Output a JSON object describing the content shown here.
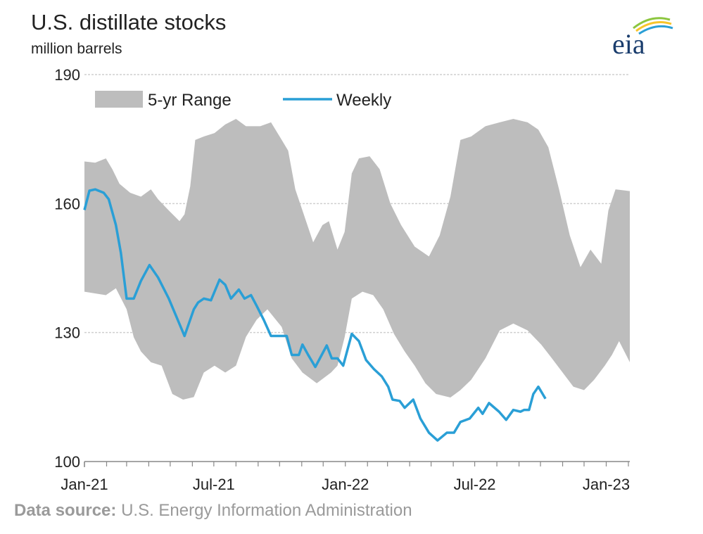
{
  "title": "U.S. distillate stocks",
  "subtitle": "million barrels",
  "logo_text": "eia",
  "source_label": "Data source:",
  "source_text": "U.S. Energy Information Administration",
  "colors": {
    "weekly": "#2a9fd6",
    "range": "#bdbdbd",
    "grid": "#d0d0d0"
  },
  "chart_data": {
    "type": "line",
    "title": "U.S. distillate stocks",
    "ylabel": "million barrels",
    "ylim": [
      100,
      190
    ],
    "yticks": [
      100,
      130,
      160,
      190
    ],
    "xlim": [
      "2021-01-01",
      "2023-02-03"
    ],
    "xticks": [
      {
        "date": "2021-01-01",
        "label": "Jan-21"
      },
      {
        "date": "2021-07-01",
        "label": "Jul-21"
      },
      {
        "date": "2022-01-01",
        "label": "Jan-22"
      },
      {
        "date": "2022-07-01",
        "label": "Jul-22"
      },
      {
        "date": "2023-01-01",
        "label": "Jan-23"
      }
    ],
    "grid": "horizontal",
    "legend": {
      "position": "top-left",
      "range_label": "5-yr Range",
      "weekly_label": "Weekly"
    },
    "range_upper": [
      [
        "2021-01-01",
        169.8
      ],
      [
        "2021-01-16",
        169.5
      ],
      [
        "2021-01-31",
        170.5
      ],
      [
        "2021-02-09",
        168
      ],
      [
        "2021-02-19",
        164.6
      ],
      [
        "2021-03-06",
        162.5
      ],
      [
        "2021-03-21",
        161.6
      ],
      [
        "2021-04-04",
        163.3
      ],
      [
        "2021-04-14",
        161
      ],
      [
        "2021-04-29",
        158.4
      ],
      [
        "2021-05-14",
        155.9
      ],
      [
        "2021-05-21",
        157.5
      ],
      [
        "2021-05-29",
        164
      ],
      [
        "2021-06-05",
        174.8
      ],
      [
        "2021-06-17",
        175.6
      ],
      [
        "2021-07-02",
        176.4
      ],
      [
        "2021-07-17",
        178.4
      ],
      [
        "2021-08-01",
        179.7
      ],
      [
        "2021-08-15",
        178
      ],
      [
        "2021-09-04",
        178
      ],
      [
        "2021-09-19",
        178.9
      ],
      [
        "2021-10-04",
        174.8
      ],
      [
        "2021-10-13",
        172.3
      ],
      [
        "2021-10-23",
        163.3
      ],
      [
        "2021-11-02",
        158.4
      ],
      [
        "2021-11-17",
        151
      ],
      [
        "2021-11-30",
        155
      ],
      [
        "2021-12-09",
        155.9
      ],
      [
        "2021-12-21",
        149.3
      ],
      [
        "2021-12-31",
        153.4
      ],
      [
        "2022-01-10",
        167
      ],
      [
        "2022-01-20",
        170.5
      ],
      [
        "2022-02-04",
        171
      ],
      [
        "2022-02-18",
        168
      ],
      [
        "2022-03-05",
        160
      ],
      [
        "2022-03-20",
        155
      ],
      [
        "2022-04-08",
        150
      ],
      [
        "2022-04-28",
        147.7
      ],
      [
        "2022-05-13",
        152.6
      ],
      [
        "2022-05-28",
        161.6
      ],
      [
        "2022-06-11",
        174.8
      ],
      [
        "2022-06-26",
        175.6
      ],
      [
        "2022-07-16",
        178
      ],
      [
        "2022-08-05",
        178.9
      ],
      [
        "2022-08-24",
        179.7
      ],
      [
        "2022-09-13",
        178.9
      ],
      [
        "2022-09-28",
        177.2
      ],
      [
        "2022-10-12",
        173.1
      ],
      [
        "2022-10-27",
        163.3
      ],
      [
        "2022-11-11",
        152.6
      ],
      [
        "2022-11-26",
        145.2
      ],
      [
        "2022-12-10",
        149.3
      ],
      [
        "2022-12-25",
        146
      ],
      [
        "2023-01-04",
        158.4
      ],
      [
        "2023-01-14",
        163.3
      ],
      [
        "2023-02-03",
        162.9
      ]
    ],
    "range_lower": [
      [
        "2021-01-01",
        139.5
      ],
      [
        "2021-01-31",
        138.7
      ],
      [
        "2021-02-14",
        140.3
      ],
      [
        "2021-03-01",
        135.4
      ],
      [
        "2021-03-11",
        128.9
      ],
      [
        "2021-03-21",
        125.6
      ],
      [
        "2021-04-04",
        123.1
      ],
      [
        "2021-04-19",
        122.3
      ],
      [
        "2021-05-04",
        115.7
      ],
      [
        "2021-05-19",
        114.4
      ],
      [
        "2021-06-03",
        115
      ],
      [
        "2021-06-17",
        120.7
      ],
      [
        "2021-07-02",
        122.3
      ],
      [
        "2021-07-17",
        120.7
      ],
      [
        "2021-08-01",
        122.3
      ],
      [
        "2021-08-15",
        129
      ],
      [
        "2021-08-30",
        133
      ],
      [
        "2021-09-14",
        135.4
      ],
      [
        "2021-10-04",
        131.3
      ],
      [
        "2021-10-18",
        124
      ],
      [
        "2021-11-02",
        120.7
      ],
      [
        "2021-11-22",
        118.2
      ],
      [
        "2021-12-12",
        120.7
      ],
      [
        "2021-12-21",
        122.3
      ],
      [
        "2021-12-31",
        128.9
      ],
      [
        "2022-01-10",
        137.9
      ],
      [
        "2022-01-25",
        139.5
      ],
      [
        "2022-02-09",
        138.7
      ],
      [
        "2022-02-23",
        135.4
      ],
      [
        "2022-03-10",
        129.7
      ],
      [
        "2022-03-25",
        125.6
      ],
      [
        "2022-04-08",
        122.3
      ],
      [
        "2022-04-23",
        118.2
      ],
      [
        "2022-05-08",
        115.7
      ],
      [
        "2022-05-28",
        114.9
      ],
      [
        "2022-06-11",
        116.6
      ],
      [
        "2022-06-26",
        119
      ],
      [
        "2022-07-16",
        124
      ],
      [
        "2022-08-05",
        130.5
      ],
      [
        "2022-08-24",
        132.1
      ],
      [
        "2022-09-13",
        130.5
      ],
      [
        "2022-10-02",
        127.2
      ],
      [
        "2022-10-17",
        124
      ],
      [
        "2022-11-01",
        120.7
      ],
      [
        "2022-11-16",
        117.4
      ],
      [
        "2022-12-01",
        116.6
      ],
      [
        "2022-12-15",
        119
      ],
      [
        "2022-12-30",
        122.3
      ],
      [
        "2023-01-09",
        124.8
      ],
      [
        "2023-01-19",
        128
      ],
      [
        "2023-02-03",
        123.1
      ]
    ],
    "weekly": [
      [
        "2021-01-01",
        158.5
      ],
      [
        "2021-01-08",
        163
      ],
      [
        "2021-01-16",
        163.3
      ],
      [
        "2021-01-28",
        162.5
      ],
      [
        "2021-02-04",
        161
      ],
      [
        "2021-02-14",
        155
      ],
      [
        "2021-02-21",
        148.5
      ],
      [
        "2021-03-01",
        137.9
      ],
      [
        "2021-03-11",
        137.9
      ],
      [
        "2021-03-21",
        142
      ],
      [
        "2021-04-02",
        145.7
      ],
      [
        "2021-04-14",
        142.8
      ],
      [
        "2021-04-29",
        137.9
      ],
      [
        "2021-05-21",
        129.2
      ],
      [
        "2021-06-03",
        135.4
      ],
      [
        "2021-06-09",
        137
      ],
      [
        "2021-06-17",
        137.9
      ],
      [
        "2021-06-27",
        137.5
      ],
      [
        "2021-07-09",
        142.3
      ],
      [
        "2021-07-17",
        141.1
      ],
      [
        "2021-07-25",
        137.9
      ],
      [
        "2021-08-05",
        140
      ],
      [
        "2021-08-13",
        137.9
      ],
      [
        "2021-08-22",
        138.7
      ],
      [
        "2021-08-30",
        136.2
      ],
      [
        "2021-09-09",
        132.9
      ],
      [
        "2021-09-19",
        129.2
      ],
      [
        "2021-10-04",
        129.2
      ],
      [
        "2021-10-11",
        129.2
      ],
      [
        "2021-10-18",
        124.8
      ],
      [
        "2021-10-28",
        124.8
      ],
      [
        "2021-11-02",
        127.2
      ],
      [
        "2021-11-10",
        124.8
      ],
      [
        "2021-11-20",
        122
      ],
      [
        "2021-12-06",
        127
      ],
      [
        "2021-12-13",
        124
      ],
      [
        "2021-12-21",
        124
      ],
      [
        "2021-12-29",
        122.3
      ],
      [
        "2022-01-10",
        129.7
      ],
      [
        "2022-01-20",
        128
      ],
      [
        "2022-01-30",
        123.6
      ],
      [
        "2022-02-10",
        121.5
      ],
      [
        "2022-02-21",
        119.8
      ],
      [
        "2022-03-02",
        117.4
      ],
      [
        "2022-03-08",
        114.4
      ],
      [
        "2022-03-18",
        114.1
      ],
      [
        "2022-03-25",
        112.5
      ],
      [
        "2022-04-06",
        114.4
      ],
      [
        "2022-04-16",
        110
      ],
      [
        "2022-04-28",
        106.7
      ],
      [
        "2022-05-10",
        104.9
      ],
      [
        "2022-05-23",
        106.7
      ],
      [
        "2022-06-02",
        106.7
      ],
      [
        "2022-06-11",
        109.2
      ],
      [
        "2022-06-24",
        110
      ],
      [
        "2022-07-06",
        112.5
      ],
      [
        "2022-07-12",
        111.1
      ],
      [
        "2022-07-21",
        113.6
      ],
      [
        "2022-08-04",
        111.6
      ],
      [
        "2022-08-14",
        109.7
      ],
      [
        "2022-08-24",
        112
      ],
      [
        "2022-09-03",
        111.6
      ],
      [
        "2022-09-08",
        112
      ],
      [
        "2022-09-15",
        112
      ],
      [
        "2022-09-21",
        115.7
      ],
      [
        "2022-09-28",
        117.4
      ],
      [
        "2022-10-08",
        114.6
      ]
    ]
  }
}
